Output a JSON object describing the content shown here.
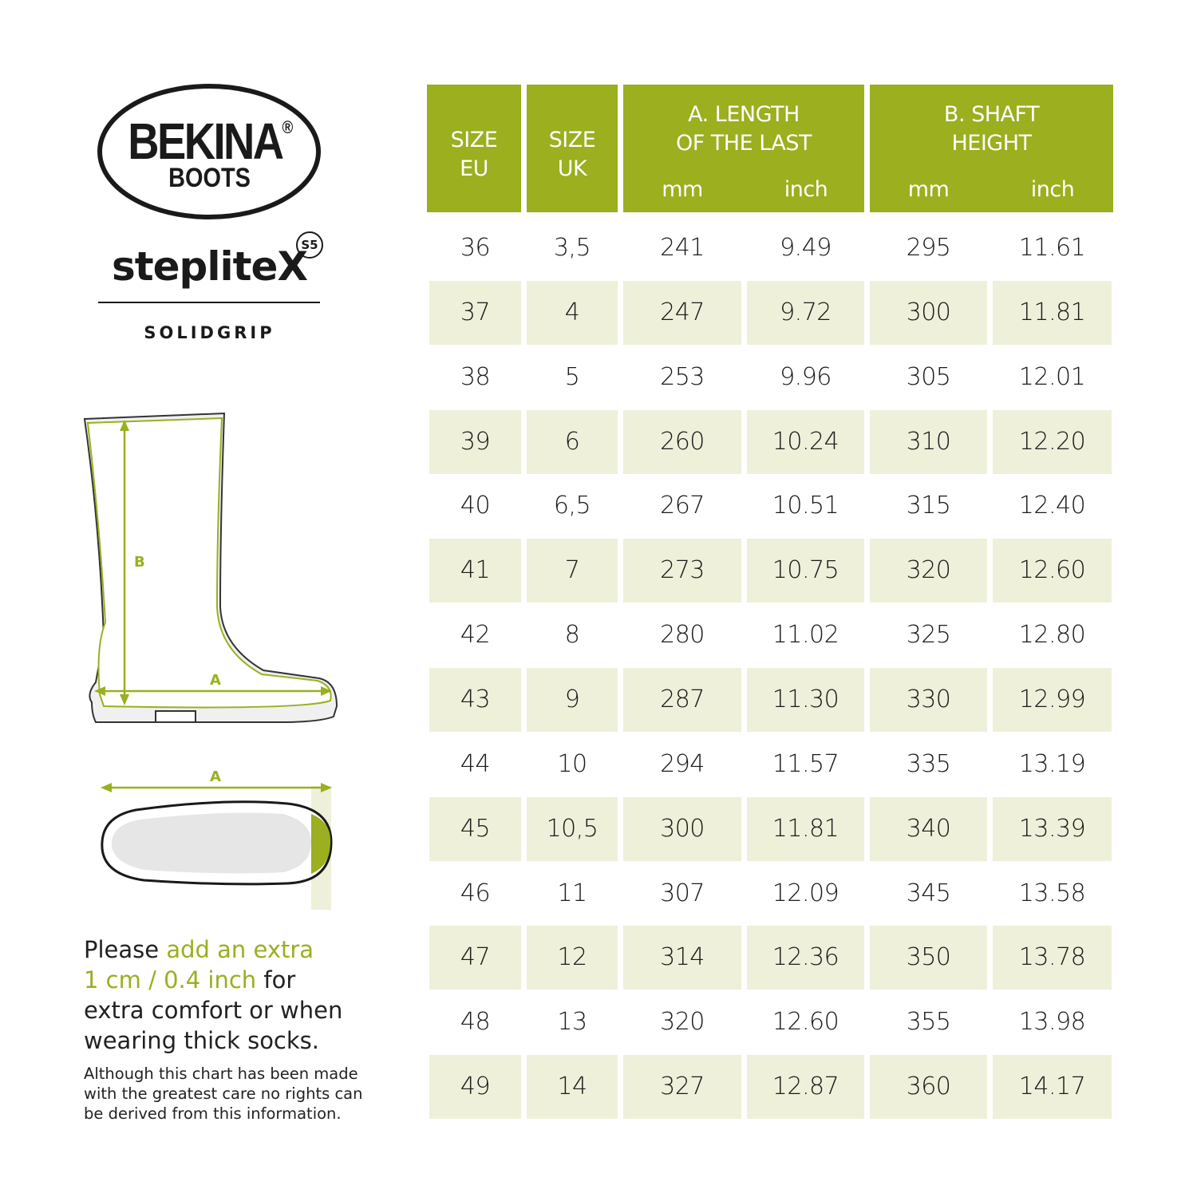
{
  "brand": {
    "logo": "BEKINA BOOTS",
    "registered": "®",
    "product": "steplite",
    "product_x": "X",
    "rating": "S5",
    "line": "SOLIDGRIP"
  },
  "diagram": {
    "label_a": "A",
    "label_b": "B"
  },
  "note": {
    "part1": "Please ",
    "highlight1": "add an extra",
    "highlight2": "1 cm / 0.4 inch",
    "part2": " for",
    "part3": "extra comfort or when",
    "part4": "wearing thick socks.",
    "disclaimer": "Although this chart has been made with the greatest care no rights can be derived from this information."
  },
  "colors": {
    "header": "#9baf1f",
    "shaded_row": "#eef0d9",
    "accent_text": "#9baf1f"
  },
  "table": {
    "headers": {
      "size_eu": [
        "SIZE",
        "EU"
      ],
      "size_uk": [
        "SIZE",
        "UK"
      ],
      "length": [
        "A. LENGTH",
        "OF THE LAST"
      ],
      "shaft": [
        "B. SHAFT",
        "HEIGHT"
      ],
      "unit_mm": "mm",
      "unit_inch": "inch"
    },
    "rows": [
      [
        "36",
        "3,5",
        "241",
        "9.49",
        "295",
        "11.61"
      ],
      [
        "37",
        "4",
        "247",
        "9.72",
        "300",
        "11.81"
      ],
      [
        "38",
        "5",
        "253",
        "9.96",
        "305",
        "12.01"
      ],
      [
        "39",
        "6",
        "260",
        "10.24",
        "310",
        "12.20"
      ],
      [
        "40",
        "6,5",
        "267",
        "10.51",
        "315",
        "12.40"
      ],
      [
        "41",
        "7",
        "273",
        "10.75",
        "320",
        "12.60"
      ],
      [
        "42",
        "8",
        "280",
        "11.02",
        "325",
        "12.80"
      ],
      [
        "43",
        "9",
        "287",
        "11.30",
        "330",
        "12.99"
      ],
      [
        "44",
        "10",
        "294",
        "11.57",
        "335",
        "13.19"
      ],
      [
        "45",
        "10,5",
        "300",
        "11.81",
        "340",
        "13.39"
      ],
      [
        "46",
        "11",
        "307",
        "12.09",
        "345",
        "13.58"
      ],
      [
        "47",
        "12",
        "314",
        "12.36",
        "350",
        "13.78"
      ],
      [
        "48",
        "13",
        "320",
        "12.60",
        "355",
        "13.98"
      ],
      [
        "49",
        "14",
        "327",
        "12.87",
        "360",
        "14.17"
      ]
    ]
  }
}
